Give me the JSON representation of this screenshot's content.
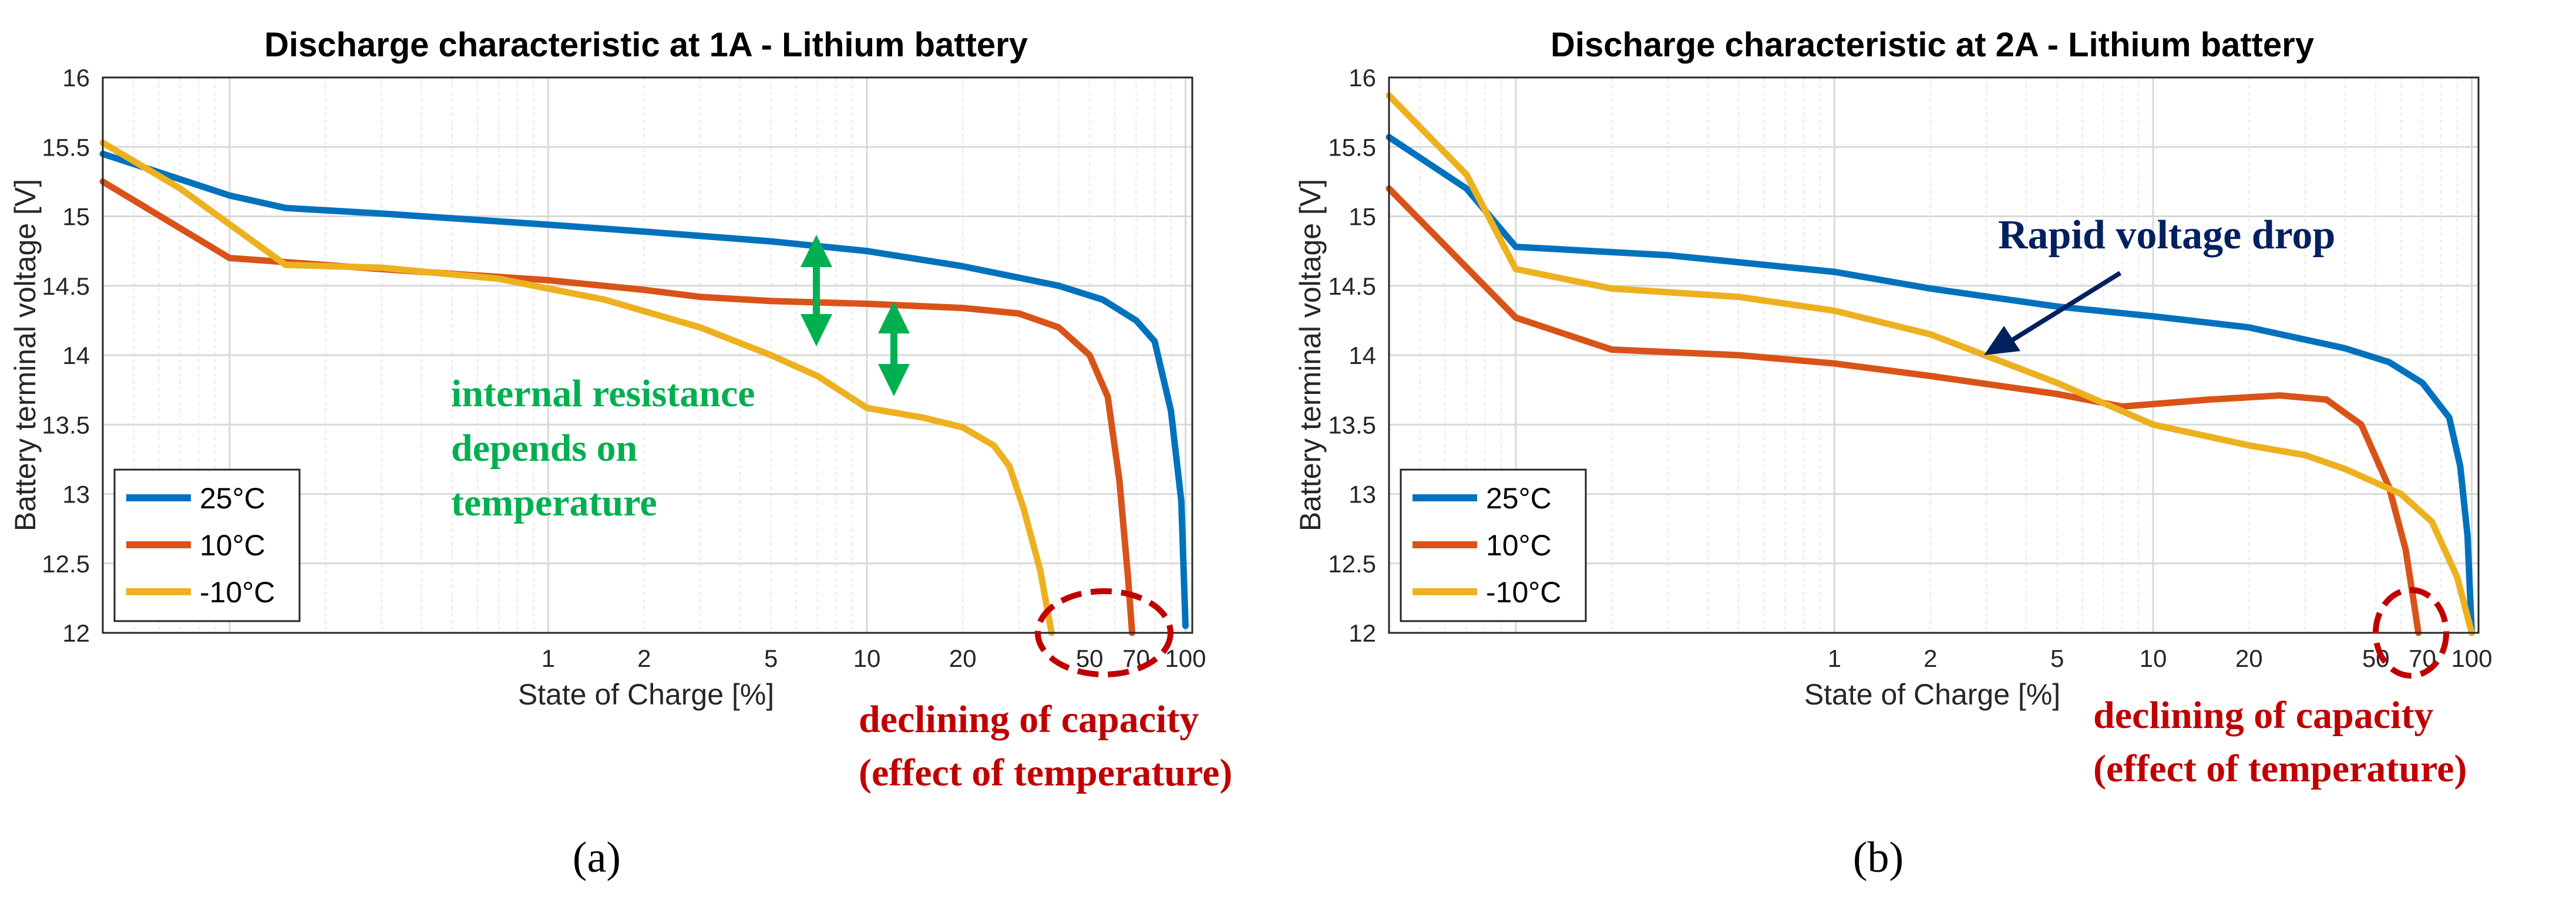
{
  "figure_labels": [
    "(a)",
    "(b)"
  ],
  "colors": {
    "c25": "#0072BD",
    "c10": "#D95319",
    "cm10": "#EDB120",
    "green": "#00B050",
    "red": "#C00000",
    "navy": "#002060",
    "grid": "#d9d9d9",
    "gridMinor": "#e8e8e8"
  },
  "chart_data": [
    {
      "type": "line",
      "title": "Discharge characteristic at 1A - Lithium battery",
      "xlabel": "State of Charge [%]",
      "ylabel": "Battery terminal voltage [V]",
      "xscale": "log",
      "xlim": [
        0.04,
        105
      ],
      "ylim": [
        12,
        16
      ],
      "xticks": [
        1,
        2,
        5,
        10,
        20,
        50,
        70,
        100
      ],
      "xtick_labels": [
        "1",
        "2",
        "5",
        "10",
        "20",
        "50",
        "70",
        "100"
      ],
      "yticks": [
        12,
        12.5,
        13,
        13.5,
        14,
        14.5,
        15,
        15.5,
        16
      ],
      "ytick_labels": [
        "12",
        "12.5",
        "13",
        "13.5",
        "14",
        "14.5",
        "15",
        "15.5",
        "16"
      ],
      "legend_location": "bottom-left",
      "series": [
        {
          "name": "25°C",
          "color": "#0072BD",
          "points": [
            [
              0.04,
              15.45
            ],
            [
              0.1,
              15.15
            ],
            [
              0.15,
              15.06
            ],
            [
              0.3,
              15.02
            ],
            [
              1,
              14.94
            ],
            [
              2,
              14.89
            ],
            [
              5,
              14.82
            ],
            [
              10,
              14.75
            ],
            [
              20,
              14.64
            ],
            [
              40,
              14.5
            ],
            [
              55,
              14.4
            ],
            [
              70,
              14.25
            ],
            [
              80,
              14.1
            ],
            [
              90,
              13.6
            ],
            [
              97,
              12.95
            ],
            [
              100,
              12.05
            ]
          ]
        },
        {
          "name": "10°C",
          "color": "#D95319",
          "points": [
            [
              0.04,
              15.25
            ],
            [
              0.1,
              14.7
            ],
            [
              0.3,
              14.62
            ],
            [
              1,
              14.54
            ],
            [
              2,
              14.47
            ],
            [
              3,
              14.42
            ],
            [
              5,
              14.39
            ],
            [
              10,
              14.37
            ],
            [
              20,
              14.34
            ],
            [
              30,
              14.3
            ],
            [
              40,
              14.2
            ],
            [
              50,
              14.0
            ],
            [
              57,
              13.7
            ],
            [
              62,
              13.1
            ],
            [
              66,
              12.4
            ],
            [
              68,
              12.0
            ]
          ]
        },
        {
          "name": "-10°C",
          "color": "#EDB120",
          "points": [
            [
              0.04,
              15.53
            ],
            [
              0.07,
              15.2
            ],
            [
              0.15,
              14.65
            ],
            [
              0.3,
              14.63
            ],
            [
              0.7,
              14.55
            ],
            [
              1.5,
              14.4
            ],
            [
              3,
              14.2
            ],
            [
              5,
              14.0
            ],
            [
              7,
              13.85
            ],
            [
              10,
              13.62
            ],
            [
              15,
              13.55
            ],
            [
              20,
              13.48
            ],
            [
              25,
              13.35
            ],
            [
              28,
              13.2
            ],
            [
              31,
              12.9
            ],
            [
              35,
              12.45
            ],
            [
              38,
              12.0
            ]
          ]
        }
      ],
      "annotations": [
        {
          "text_lines": [
            "internal resistance",
            "depends on",
            "temperature"
          ],
          "color": "#00B050"
        },
        {
          "text_lines": [
            "declining of capacity",
            "(effect of temperature)"
          ],
          "color": "#C00000"
        }
      ]
    },
    {
      "type": "line",
      "title": "Discharge characteristic at 2A - Lithium battery",
      "xlabel": "State of Charge [%]",
      "ylabel": "Battery terminal voltage [V]",
      "xscale": "log",
      "xlim": [
        0.04,
        105
      ],
      "ylim": [
        12,
        16
      ],
      "xticks": [
        1,
        2,
        5,
        10,
        20,
        50,
        70,
        100
      ],
      "xtick_labels": [
        "1",
        "2",
        "5",
        "10",
        "20",
        "50",
        "70",
        "100"
      ],
      "yticks": [
        12,
        12.5,
        13,
        13.5,
        14,
        14.5,
        15,
        15.5,
        16
      ],
      "ytick_labels": [
        "12",
        "12.5",
        "13",
        "13.5",
        "14",
        "14.5",
        "15",
        "15.5",
        "16"
      ],
      "legend_location": "bottom-left",
      "series": [
        {
          "name": "25°C",
          "color": "#0072BD",
          "points": [
            [
              0.04,
              15.57
            ],
            [
              0.07,
              15.2
            ],
            [
              0.1,
              14.78
            ],
            [
              0.3,
              14.72
            ],
            [
              1,
              14.6
            ],
            [
              2,
              14.48
            ],
            [
              5,
              14.35
            ],
            [
              10,
              14.28
            ],
            [
              20,
              14.2
            ],
            [
              40,
              14.05
            ],
            [
              55,
              13.95
            ],
            [
              70,
              13.8
            ],
            [
              85,
              13.55
            ],
            [
              92,
              13.2
            ],
            [
              97,
              12.7
            ],
            [
              100,
              12.0
            ]
          ]
        },
        {
          "name": "10°C",
          "color": "#D95319",
          "points": [
            [
              0.04,
              15.2
            ],
            [
              0.1,
              14.27
            ],
            [
              0.2,
              14.04
            ],
            [
              0.5,
              14.0
            ],
            [
              1,
              13.94
            ],
            [
              2,
              13.85
            ],
            [
              5,
              13.72
            ],
            [
              8,
              13.63
            ],
            [
              15,
              13.68
            ],
            [
              25,
              13.71
            ],
            [
              35,
              13.68
            ],
            [
              45,
              13.5
            ],
            [
              55,
              13.05
            ],
            [
              62,
              12.6
            ],
            [
              66,
              12.2
            ],
            [
              68,
              12.0
            ]
          ]
        },
        {
          "name": "-10°C",
          "color": "#EDB120",
          "points": [
            [
              0.04,
              15.87
            ],
            [
              0.07,
              15.3
            ],
            [
              0.1,
              14.62
            ],
            [
              0.2,
              14.48
            ],
            [
              0.5,
              14.42
            ],
            [
              1,
              14.32
            ],
            [
              2,
              14.15
            ],
            [
              5,
              13.8
            ],
            [
              10,
              13.5
            ],
            [
              20,
              13.35
            ],
            [
              30,
              13.28
            ],
            [
              40,
              13.18
            ],
            [
              60,
              13.0
            ],
            [
              75,
              12.8
            ],
            [
              90,
              12.4
            ],
            [
              100,
              12.0
            ]
          ]
        }
      ],
      "annotations": [
        {
          "text_lines": [
            "Rapid voltage drop"
          ],
          "color": "#002060"
        },
        {
          "text_lines": [
            "declining of capacity",
            "(effect of temperature)"
          ],
          "color": "#C00000"
        }
      ]
    }
  ]
}
